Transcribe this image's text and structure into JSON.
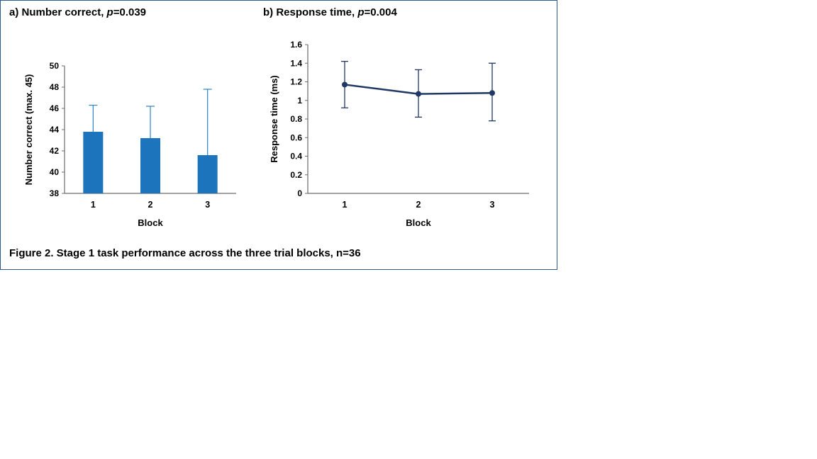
{
  "figure": {
    "caption": "Figure 2. Stage 1 task performance across the three trial blocks, n=36",
    "border_color": "#2e5a94",
    "axis_color": "#6b6b6b"
  },
  "chart_data": [
    {
      "type": "bar",
      "title_prefix": "a) Number correct, ",
      "title_p": "p",
      "title_suffix": "=0.039",
      "categories": [
        "1",
        "2",
        "3"
      ],
      "values": [
        43.8,
        43.2,
        41.6
      ],
      "error_upper": [
        46.3,
        46.2,
        47.8
      ],
      "xlabel": "Block",
      "ylabel": "Number correct (max. 45)",
      "ylim": [
        38,
        50
      ],
      "ytick_step": 2,
      "bar_color": "#1c75bc",
      "error_color": "#2e83c5",
      "legend": "none",
      "grid": false
    },
    {
      "type": "line",
      "title_prefix": "b) Response time, ",
      "title_p": "p",
      "title_suffix": "=0.004",
      "categories": [
        "1",
        "2",
        "3"
      ],
      "values": [
        1.17,
        1.07,
        1.08
      ],
      "error_upper": [
        1.42,
        1.33,
        1.4
      ],
      "error_lower": [
        0.92,
        0.82,
        0.78
      ],
      "xlabel": "Block",
      "ylabel": "Response time (ms)",
      "ylim": [
        0,
        1.6
      ],
      "ytick_step": 0.2,
      "line_color": "#1f3864",
      "legend": "none",
      "grid": false
    }
  ]
}
